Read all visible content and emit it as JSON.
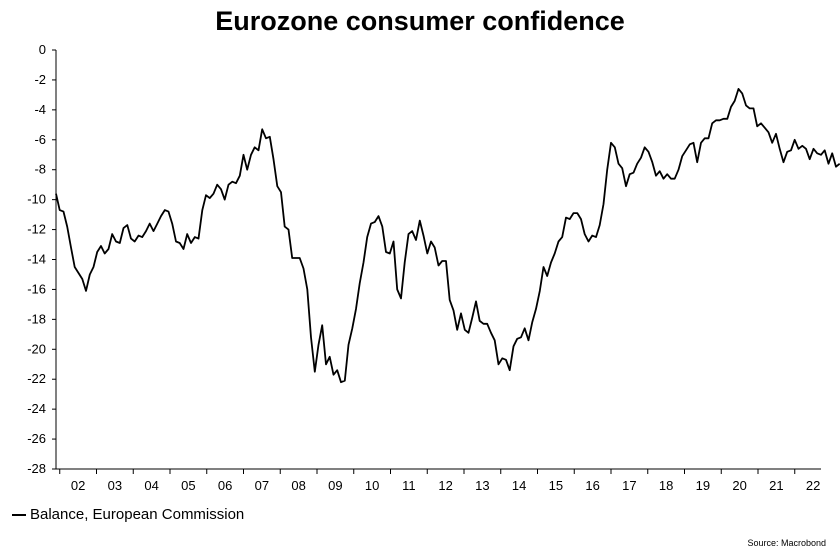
{
  "title": "Eurozone consumer confidence",
  "source": "Source: Macrobond",
  "chart_data": {
    "type": "line",
    "title": "Eurozone consumer confidence",
    "xlabel": "",
    "ylabel": "",
    "ylim": [
      -28,
      0
    ],
    "yticks": [
      0,
      -2,
      -4,
      -6,
      -8,
      -10,
      -12,
      -14,
      -16,
      -18,
      -20,
      -22,
      -24,
      -26,
      -28
    ],
    "xlim": [
      2002.0,
      2022.4
    ],
    "xtick_labels": [
      "02",
      "03",
      "04",
      "05",
      "06",
      "07",
      "08",
      "09",
      "10",
      "11",
      "12",
      "13",
      "14",
      "15",
      "16",
      "17",
      "18",
      "19",
      "20",
      "21",
      "22"
    ],
    "grid": false,
    "legend_position": "bottom-left",
    "series": [
      {
        "name": "Balance, European Commission",
        "color": "#000000",
        "points": [
          [
            2002.0,
            -9.6
          ],
          [
            2002.1,
            -10.7
          ],
          [
            2002.2,
            -10.8
          ],
          [
            2002.3,
            -11.8
          ],
          [
            2002.4,
            -13.2
          ],
          [
            2002.5,
            -14.5
          ],
          [
            2002.6,
            -14.9
          ],
          [
            2002.7,
            -15.3
          ],
          [
            2002.8,
            -16.1
          ],
          [
            2002.9,
            -15.0
          ],
          [
            2003.0,
            -14.5
          ],
          [
            2003.1,
            -13.5
          ],
          [
            2003.2,
            -13.1
          ],
          [
            2003.3,
            -13.6
          ],
          [
            2003.4,
            -13.3
          ],
          [
            2003.5,
            -12.3
          ],
          [
            2003.6,
            -12.8
          ],
          [
            2003.7,
            -12.9
          ],
          [
            2003.8,
            -11.9
          ],
          [
            2003.9,
            -11.7
          ],
          [
            2004.0,
            -12.6
          ],
          [
            2004.1,
            -12.8
          ],
          [
            2004.2,
            -12.4
          ],
          [
            2004.3,
            -12.5
          ],
          [
            2004.4,
            -12.1
          ],
          [
            2004.5,
            -11.6
          ],
          [
            2004.6,
            -12.1
          ],
          [
            2004.7,
            -11.6
          ],
          [
            2004.8,
            -11.1
          ],
          [
            2004.9,
            -10.7
          ],
          [
            2005.0,
            -10.8
          ],
          [
            2005.1,
            -11.6
          ],
          [
            2005.2,
            -12.8
          ],
          [
            2005.3,
            -12.9
          ],
          [
            2005.4,
            -13.3
          ],
          [
            2005.5,
            -12.3
          ],
          [
            2005.6,
            -12.9
          ],
          [
            2005.7,
            -12.5
          ],
          [
            2005.8,
            -12.6
          ],
          [
            2005.9,
            -10.7
          ],
          [
            2006.0,
            -9.7
          ],
          [
            2006.1,
            -9.9
          ],
          [
            2006.2,
            -9.6
          ],
          [
            2006.3,
            -9.0
          ],
          [
            2006.4,
            -9.3
          ],
          [
            2006.5,
            -10.0
          ],
          [
            2006.6,
            -9.0
          ],
          [
            2006.7,
            -8.8
          ],
          [
            2006.8,
            -8.9
          ],
          [
            2006.9,
            -8.4
          ],
          [
            2007.0,
            -7.0
          ],
          [
            2007.1,
            -8.0
          ],
          [
            2007.2,
            -7.0
          ],
          [
            2007.3,
            -6.5
          ],
          [
            2007.4,
            -6.7
          ],
          [
            2007.5,
            -5.3
          ],
          [
            2007.6,
            -5.9
          ],
          [
            2007.7,
            -5.8
          ],
          [
            2007.8,
            -7.3
          ],
          [
            2007.9,
            -9.1
          ],
          [
            2008.0,
            -9.5
          ],
          [
            2008.1,
            -11.8
          ],
          [
            2008.2,
            -12.0
          ],
          [
            2008.3,
            -13.9
          ],
          [
            2008.4,
            -13.9
          ],
          [
            2008.5,
            -13.9
          ],
          [
            2008.6,
            -14.6
          ],
          [
            2008.7,
            -16.0
          ],
          [
            2008.8,
            -19.2
          ],
          [
            2008.9,
            -21.5
          ],
          [
            2009.0,
            -19.7
          ],
          [
            2009.1,
            -18.4
          ],
          [
            2009.2,
            -21.0
          ],
          [
            2009.3,
            -20.5
          ],
          [
            2009.4,
            -21.7
          ],
          [
            2009.5,
            -21.4
          ],
          [
            2009.6,
            -22.2
          ],
          [
            2009.7,
            -22.1
          ],
          [
            2009.8,
            -19.7
          ],
          [
            2009.9,
            -18.6
          ],
          [
            2010.0,
            -17.3
          ],
          [
            2010.1,
            -15.6
          ],
          [
            2010.2,
            -14.2
          ],
          [
            2010.3,
            -12.5
          ],
          [
            2010.4,
            -11.6
          ],
          [
            2010.5,
            -11.5
          ],
          [
            2010.6,
            -11.1
          ],
          [
            2010.7,
            -11.8
          ],
          [
            2010.8,
            -13.5
          ],
          [
            2010.9,
            -13.6
          ],
          [
            2011.0,
            -12.8
          ],
          [
            2011.1,
            -16.0
          ],
          [
            2011.2,
            -16.6
          ],
          [
            2011.3,
            -14.2
          ],
          [
            2011.4,
            -12.3
          ],
          [
            2011.5,
            -12.1
          ],
          [
            2011.6,
            -12.7
          ],
          [
            2011.7,
            -11.4
          ],
          [
            2011.8,
            -12.4
          ],
          [
            2011.9,
            -13.6
          ],
          [
            2012.0,
            -12.8
          ],
          [
            2012.1,
            -13.2
          ],
          [
            2012.2,
            -14.4
          ],
          [
            2012.3,
            -14.1
          ],
          [
            2012.4,
            -14.1
          ],
          [
            2012.5,
            -16.7
          ],
          [
            2012.6,
            -17.4
          ],
          [
            2012.7,
            -18.7
          ],
          [
            2012.8,
            -17.6
          ],
          [
            2012.9,
            -18.7
          ],
          [
            2013.0,
            -18.9
          ],
          [
            2013.1,
            -17.9
          ],
          [
            2013.2,
            -16.8
          ],
          [
            2013.3,
            -18.1
          ],
          [
            2013.4,
            -18.3
          ],
          [
            2013.5,
            -18.3
          ],
          [
            2013.6,
            -18.9
          ],
          [
            2013.7,
            -19.4
          ],
          [
            2013.8,
            -21.0
          ],
          [
            2013.9,
            -20.6
          ],
          [
            2014.0,
            -20.7
          ],
          [
            2014.1,
            -21.4
          ],
          [
            2014.2,
            -19.8
          ],
          [
            2014.3,
            -19.3
          ],
          [
            2014.4,
            -19.2
          ],
          [
            2014.5,
            -18.6
          ],
          [
            2014.6,
            -19.4
          ],
          [
            2014.7,
            -18.2
          ],
          [
            2014.8,
            -17.3
          ],
          [
            2014.9,
            -16.1
          ],
          [
            2015.0,
            -14.5
          ],
          [
            2015.1,
            -15.1
          ],
          [
            2015.2,
            -14.2
          ],
          [
            2015.3,
            -13.6
          ],
          [
            2015.4,
            -12.8
          ],
          [
            2015.5,
            -12.5
          ],
          [
            2015.6,
            -11.2
          ],
          [
            2015.7,
            -11.3
          ],
          [
            2015.8,
            -10.9
          ],
          [
            2015.9,
            -10.9
          ],
          [
            2016.0,
            -11.3
          ],
          [
            2016.1,
            -12.3
          ],
          [
            2016.2,
            -12.8
          ],
          [
            2016.3,
            -12.4
          ],
          [
            2016.4,
            -12.5
          ],
          [
            2016.5,
            -11.7
          ],
          [
            2016.6,
            -10.3
          ],
          [
            2016.7,
            -8.0
          ],
          [
            2016.8,
            -6.2
          ],
          [
            2016.9,
            -6.5
          ],
          [
            2017.0,
            -7.6
          ],
          [
            2017.1,
            -7.9
          ],
          [
            2017.2,
            -9.1
          ],
          [
            2017.3,
            -8.3
          ],
          [
            2017.4,
            -8.2
          ],
          [
            2017.5,
            -7.6
          ],
          [
            2017.6,
            -7.2
          ],
          [
            2017.7,
            -6.5
          ],
          [
            2017.8,
            -6.8
          ],
          [
            2017.9,
            -7.5
          ],
          [
            2018.0,
            -8.4
          ],
          [
            2018.1,
            -8.1
          ],
          [
            2018.2,
            -8.6
          ],
          [
            2018.3,
            -8.3
          ],
          [
            2018.4,
            -8.6
          ],
          [
            2018.5,
            -8.6
          ],
          [
            2018.6,
            -8.0
          ],
          [
            2018.7,
            -7.1
          ],
          [
            2018.8,
            -6.7
          ],
          [
            2018.9,
            -6.3
          ],
          [
            2019.0,
            -6.2
          ],
          [
            2019.1,
            -7.5
          ],
          [
            2019.2,
            -6.2
          ],
          [
            2019.3,
            -5.9
          ],
          [
            2019.4,
            -5.9
          ],
          [
            2019.5,
            -4.9
          ],
          [
            2019.6,
            -4.7
          ],
          [
            2019.7,
            -4.7
          ],
          [
            2019.8,
            -4.6
          ],
          [
            2019.9,
            -4.6
          ],
          [
            2020.0,
            -3.8
          ],
          [
            2020.1,
            -3.4
          ],
          [
            2020.2,
            -2.6
          ],
          [
            2020.3,
            -2.9
          ],
          [
            2020.4,
            -3.7
          ],
          [
            2020.5,
            -3.9
          ],
          [
            2020.6,
            -3.9
          ],
          [
            2020.7,
            -5.1
          ],
          [
            2020.8,
            -4.9
          ],
          [
            2020.9,
            -5.2
          ],
          [
            2021.0,
            -5.5
          ],
          [
            2021.1,
            -6.2
          ],
          [
            2021.2,
            -5.6
          ],
          [
            2021.3,
            -6.6
          ],
          [
            2021.4,
            -7.5
          ],
          [
            2021.5,
            -6.8
          ],
          [
            2021.6,
            -6.7
          ],
          [
            2021.7,
            -6.0
          ],
          [
            2021.8,
            -6.6
          ],
          [
            2021.9,
            -6.4
          ],
          [
            2022.0,
            -6.6
          ],
          [
            2022.1,
            -7.3
          ],
          [
            2022.2,
            -6.6
          ],
          [
            2022.3,
            -6.9
          ],
          [
            2022.4,
            -7.0
          ],
          [
            2022.5,
            -6.7
          ],
          [
            2022.6,
            -7.6
          ],
          [
            2022.7,
            -6.9
          ],
          [
            2022.8,
            -7.8
          ],
          [
            2022.9,
            -7.6
          ]
        ]
      }
    ]
  }
}
